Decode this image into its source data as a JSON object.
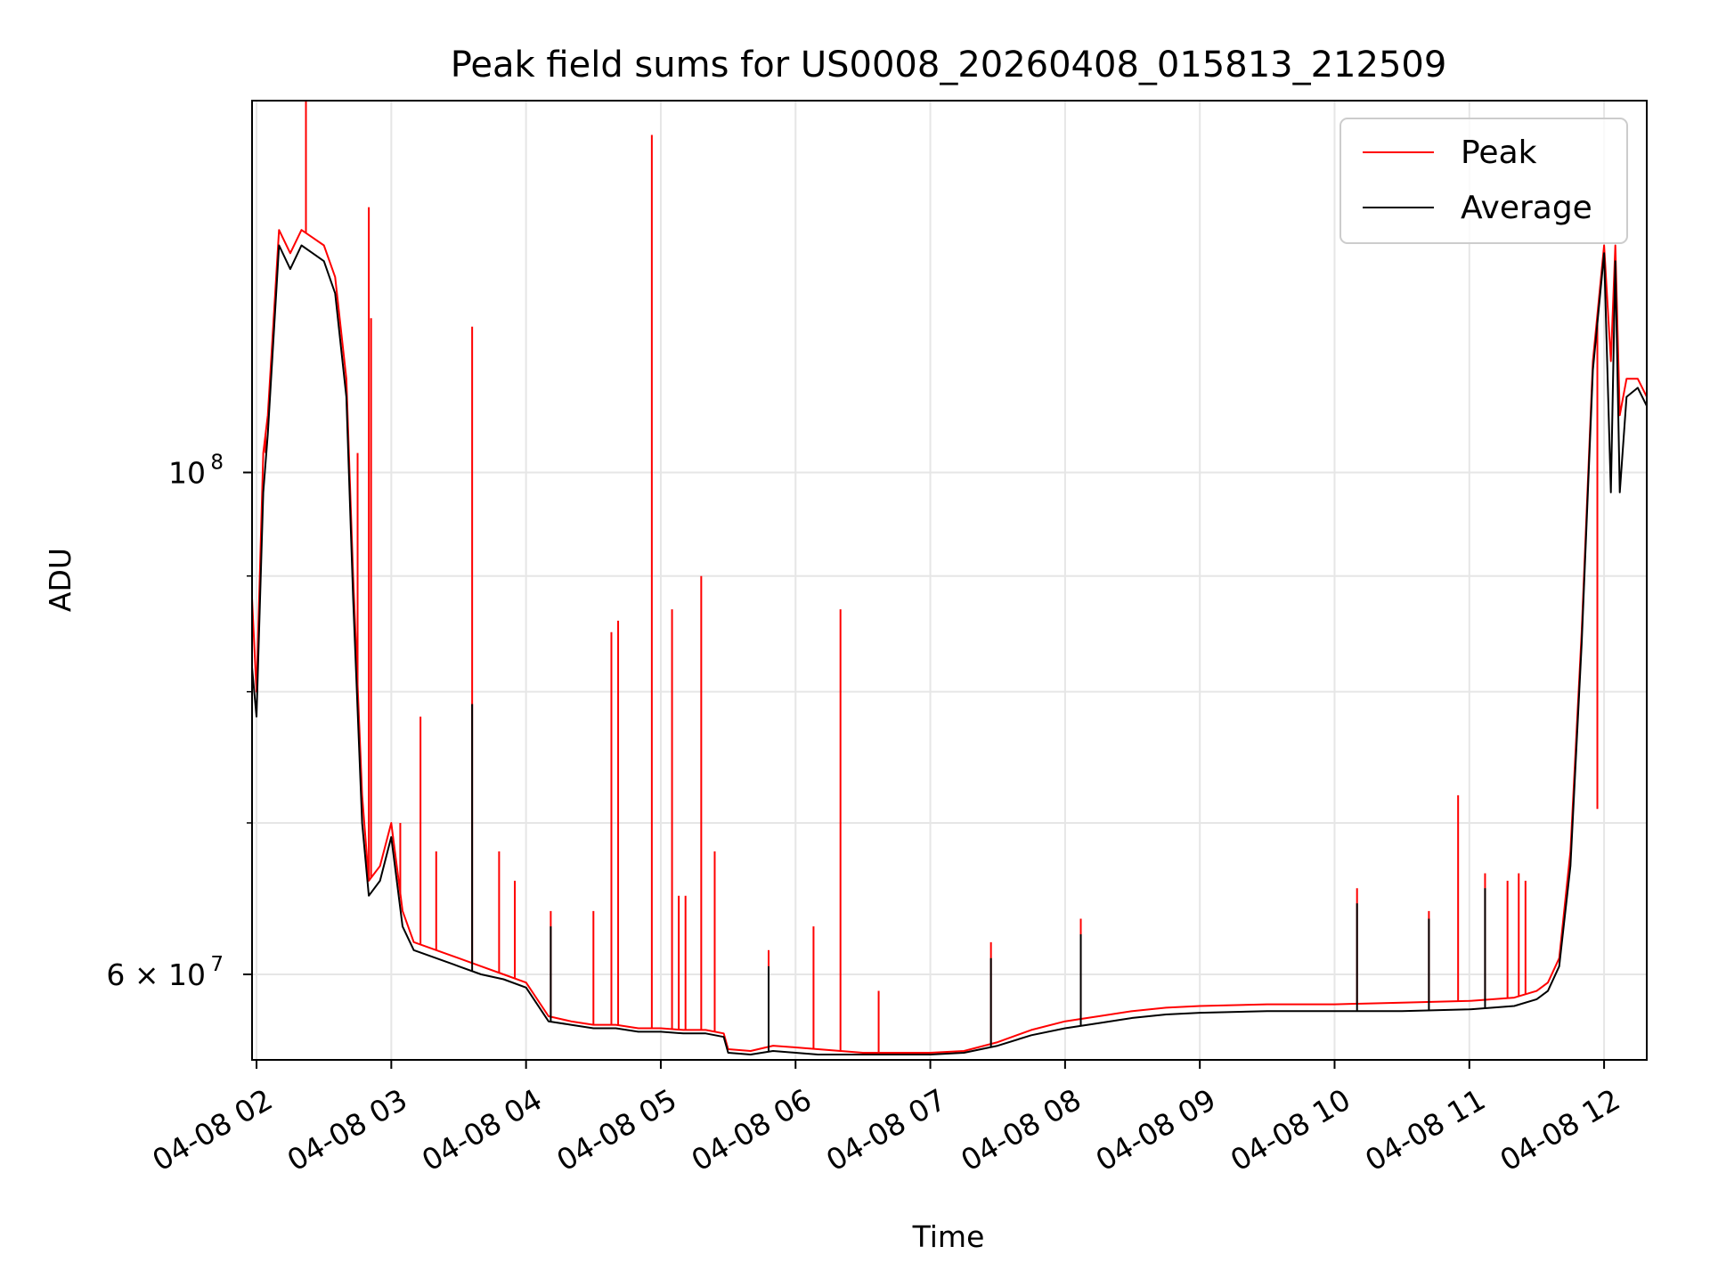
{
  "chart_data": {
    "type": "line",
    "title": "Peak field sums for US0008_20260408_015813_212509",
    "xlabel": "Time",
    "ylabel": "ADU",
    "y_scale": "log",
    "ylim": [
      55000000,
      146000000
    ],
    "xlim": [
      "2026-04-08 01:58",
      "2026-04-08 12:19"
    ],
    "grid": true,
    "legend": {
      "placement": "top-right",
      "entries": [
        "Peak",
        "Average"
      ]
    },
    "x_ticks": [
      {
        "value": "2026-04-08 02:00",
        "label": "04-08 02"
      },
      {
        "value": "2026-04-08 03:00",
        "label": "04-08 03"
      },
      {
        "value": "2026-04-08 04:00",
        "label": "04-08 04"
      },
      {
        "value": "2026-04-08 05:00",
        "label": "04-08 05"
      },
      {
        "value": "2026-04-08 06:00",
        "label": "04-08 06"
      },
      {
        "value": "2026-04-08 07:00",
        "label": "04-08 07"
      },
      {
        "value": "2026-04-08 08:00",
        "label": "04-08 08"
      },
      {
        "value": "2026-04-08 09:00",
        "label": "04-08 09"
      },
      {
        "value": "2026-04-08 10:00",
        "label": "04-08 10"
      },
      {
        "value": "2026-04-08 11:00",
        "label": "04-08 11"
      },
      {
        "value": "2026-04-08 12:00",
        "label": "04-08 12"
      }
    ],
    "y_ticks": [
      {
        "value": 60000000,
        "label_base": "6 × 10",
        "label_exp": "7"
      },
      {
        "value": 100000000,
        "label_base": "10",
        "label_exp": "8"
      }
    ],
    "y_minor_ticks": [
      70000000,
      80000000,
      90000000
    ],
    "series": [
      {
        "name": "Peak",
        "color": "#ff0000",
        "x": [
          "2026-04-08 01:58",
          "2026-04-08 02:00",
          "2026-04-08 02:03",
          "2026-04-08 02:05",
          "2026-04-08 02:10",
          "2026-04-08 02:15",
          "2026-04-08 02:20",
          "2026-04-08 02:25",
          "2026-04-08 02:30",
          "2026-04-08 02:35",
          "2026-04-08 02:40",
          "2026-04-08 02:43",
          "2026-04-08 02:47",
          "2026-04-08 02:50",
          "2026-04-08 02:55",
          "2026-04-08 03:00",
          "2026-04-08 03:05",
          "2026-04-08 03:10",
          "2026-04-08 03:20",
          "2026-04-08 03:30",
          "2026-04-08 03:40",
          "2026-04-08 03:50",
          "2026-04-08 04:00",
          "2026-04-08 04:10",
          "2026-04-08 04:20",
          "2026-04-08 04:30",
          "2026-04-08 04:40",
          "2026-04-08 04:50",
          "2026-04-08 05:00",
          "2026-04-08 05:10",
          "2026-04-08 05:20",
          "2026-04-08 05:28",
          "2026-04-08 05:30",
          "2026-04-08 05:40",
          "2026-04-08 05:50",
          "2026-04-08 06:00",
          "2026-04-08 06:10",
          "2026-04-08 06:20",
          "2026-04-08 06:30",
          "2026-04-08 06:40",
          "2026-04-08 06:50",
          "2026-04-08 07:00",
          "2026-04-08 07:15",
          "2026-04-08 07:30",
          "2026-04-08 07:45",
          "2026-04-08 08:00",
          "2026-04-08 08:15",
          "2026-04-08 08:30",
          "2026-04-08 08:45",
          "2026-04-08 09:00",
          "2026-04-08 09:30",
          "2026-04-08 10:00",
          "2026-04-08 10:30",
          "2026-04-08 11:00",
          "2026-04-08 11:20",
          "2026-04-08 11:30",
          "2026-04-08 11:35",
          "2026-04-08 11:40",
          "2026-04-08 11:45",
          "2026-04-08 11:50",
          "2026-04-08 11:55",
          "2026-04-08 12:00",
          "2026-04-08 12:03",
          "2026-04-08 12:05",
          "2026-04-08 12:07",
          "2026-04-08 12:10",
          "2026-04-08 12:15",
          "2026-04-08 12:19"
        ],
        "values": [
          88000000,
          80000000,
          102000000,
          106000000,
          128000000,
          125000000,
          128000000,
          127000000,
          126000000,
          122000000,
          110000000,
          90000000,
          72000000,
          66000000,
          67000000,
          70000000,
          64000000,
          62000000,
          61500000,
          61000000,
          60500000,
          60000000,
          59500000,
          57500000,
          57200000,
          57000000,
          57000000,
          56800000,
          56800000,
          56700000,
          56700000,
          56500000,
          55600000,
          55500000,
          55800000,
          55700000,
          55600000,
          55500000,
          55400000,
          55400000,
          55400000,
          55400000,
          55500000,
          56000000,
          56700000,
          57200000,
          57500000,
          57800000,
          58000000,
          58100000,
          58200000,
          58200000,
          58300000,
          58400000,
          58600000,
          59000000,
          59500000,
          61000000,
          68000000,
          85000000,
          112000000,
          126000000,
          112000000,
          126000000,
          106000000,
          110000000,
          110000000,
          108000000
        ],
        "spikes": [
          {
            "x": "2026-04-08 02:04",
            "value": 102000000
          },
          {
            "x": "2026-04-08 02:22",
            "value": 146000000
          },
          {
            "x": "2026-04-08 02:45",
            "value": 102000000
          },
          {
            "x": "2026-04-08 02:50",
            "value": 131000000
          },
          {
            "x": "2026-04-08 02:51",
            "value": 117000000
          },
          {
            "x": "2026-04-08 03:04",
            "value": 70000000
          },
          {
            "x": "2026-04-08 03:13",
            "value": 78000000
          },
          {
            "x": "2026-04-08 03:20",
            "value": 68000000
          },
          {
            "x": "2026-04-08 03:36",
            "value": 116000000
          },
          {
            "x": "2026-04-08 03:48",
            "value": 68000000
          },
          {
            "x": "2026-04-08 03:55",
            "value": 66000000
          },
          {
            "x": "2026-04-08 04:11",
            "value": 64000000
          },
          {
            "x": "2026-04-08 04:30",
            "value": 64000000
          },
          {
            "x": "2026-04-08 04:38",
            "value": 85000000
          },
          {
            "x": "2026-04-08 04:41",
            "value": 86000000
          },
          {
            "x": "2026-04-08 04:56",
            "value": 141000000
          },
          {
            "x": "2026-04-08 05:05",
            "value": 87000000
          },
          {
            "x": "2026-04-08 05:08",
            "value": 65000000
          },
          {
            "x": "2026-04-08 05:11",
            "value": 65000000
          },
          {
            "x": "2026-04-08 05:18",
            "value": 90000000
          },
          {
            "x": "2026-04-08 05:24",
            "value": 68000000
          },
          {
            "x": "2026-04-08 05:48",
            "value": 61500000
          },
          {
            "x": "2026-04-08 06:08",
            "value": 63000000
          },
          {
            "x": "2026-04-08 06:20",
            "value": 87000000
          },
          {
            "x": "2026-04-08 06:37",
            "value": 59000000
          },
          {
            "x": "2026-04-08 07:27",
            "value": 62000000
          },
          {
            "x": "2026-04-08 08:07",
            "value": 63500000
          },
          {
            "x": "2026-04-08 10:10",
            "value": 65500000
          },
          {
            "x": "2026-04-08 10:42",
            "value": 64000000
          },
          {
            "x": "2026-04-08 10:55",
            "value": 72000000
          },
          {
            "x": "2026-04-08 11:07",
            "value": 66500000
          },
          {
            "x": "2026-04-08 11:17",
            "value": 66000000
          },
          {
            "x": "2026-04-08 11:22",
            "value": 66500000
          },
          {
            "x": "2026-04-08 11:25",
            "value": 66000000
          },
          {
            "x": "2026-04-08 11:57",
            "value": 71000000
          }
        ]
      },
      {
        "name": "Average",
        "color": "#000000",
        "x": [
          "2026-04-08 01:58",
          "2026-04-08 02:00",
          "2026-04-08 02:03",
          "2026-04-08 02:05",
          "2026-04-08 02:10",
          "2026-04-08 02:15",
          "2026-04-08 02:20",
          "2026-04-08 02:25",
          "2026-04-08 02:30",
          "2026-04-08 02:35",
          "2026-04-08 02:40",
          "2026-04-08 02:43",
          "2026-04-08 02:47",
          "2026-04-08 02:50",
          "2026-04-08 02:55",
          "2026-04-08 03:00",
          "2026-04-08 03:05",
          "2026-04-08 03:10",
          "2026-04-08 03:20",
          "2026-04-08 03:30",
          "2026-04-08 03:40",
          "2026-04-08 03:50",
          "2026-04-08 04:00",
          "2026-04-08 04:10",
          "2026-04-08 04:20",
          "2026-04-08 04:30",
          "2026-04-08 04:40",
          "2026-04-08 04:50",
          "2026-04-08 05:00",
          "2026-04-08 05:10",
          "2026-04-08 05:20",
          "2026-04-08 05:28",
          "2026-04-08 05:30",
          "2026-04-08 05:40",
          "2026-04-08 05:50",
          "2026-04-08 06:00",
          "2026-04-08 06:10",
          "2026-04-08 06:20",
          "2026-04-08 06:30",
          "2026-04-08 06:40",
          "2026-04-08 06:50",
          "2026-04-08 07:00",
          "2026-04-08 07:15",
          "2026-04-08 07:30",
          "2026-04-08 07:45",
          "2026-04-08 08:00",
          "2026-04-08 08:15",
          "2026-04-08 08:30",
          "2026-04-08 08:45",
          "2026-04-08 09:00",
          "2026-04-08 09:30",
          "2026-04-08 10:00",
          "2026-04-08 10:30",
          "2026-04-08 11:00",
          "2026-04-08 11:20",
          "2026-04-08 11:30",
          "2026-04-08 11:35",
          "2026-04-08 11:40",
          "2026-04-08 11:45",
          "2026-04-08 11:50",
          "2026-04-08 11:55",
          "2026-04-08 12:00",
          "2026-04-08 12:03",
          "2026-04-08 12:05",
          "2026-04-08 12:07",
          "2026-04-08 12:10",
          "2026-04-08 12:15",
          "2026-04-08 12:19"
        ],
        "values": [
          82000000,
          78000000,
          98000000,
          104000000,
          126000000,
          123000000,
          126000000,
          125000000,
          124000000,
          120000000,
          108000000,
          88000000,
          70000000,
          65000000,
          66000000,
          69000000,
          63000000,
          61500000,
          61000000,
          60500000,
          60000000,
          59700000,
          59200000,
          57200000,
          57000000,
          56800000,
          56800000,
          56600000,
          56600000,
          56500000,
          56500000,
          56300000,
          55400000,
          55300000,
          55500000,
          55400000,
          55300000,
          55300000,
          55300000,
          55300000,
          55300000,
          55300000,
          55400000,
          55800000,
          56400000,
          56800000,
          57100000,
          57400000,
          57600000,
          57700000,
          57800000,
          57800000,
          57800000,
          57900000,
          58100000,
          58500000,
          59000000,
          60500000,
          67000000,
          84000000,
          111000000,
          125000000,
          98000000,
          124000000,
          98000000,
          108000000,
          109000000,
          107000000
        ],
        "spikes": [
          {
            "x": "2026-04-08 03:36",
            "value": 79000000
          },
          {
            "x": "2026-04-08 04:11",
            "value": 63000000
          },
          {
            "x": "2026-04-08 05:48",
            "value": 60500000
          },
          {
            "x": "2026-04-08 07:27",
            "value": 61000000
          },
          {
            "x": "2026-04-08 08:07",
            "value": 62500000
          },
          {
            "x": "2026-04-08 10:10",
            "value": 64500000
          },
          {
            "x": "2026-04-08 10:42",
            "value": 63500000
          },
          {
            "x": "2026-04-08 11:07",
            "value": 65500000
          }
        ]
      }
    ]
  }
}
